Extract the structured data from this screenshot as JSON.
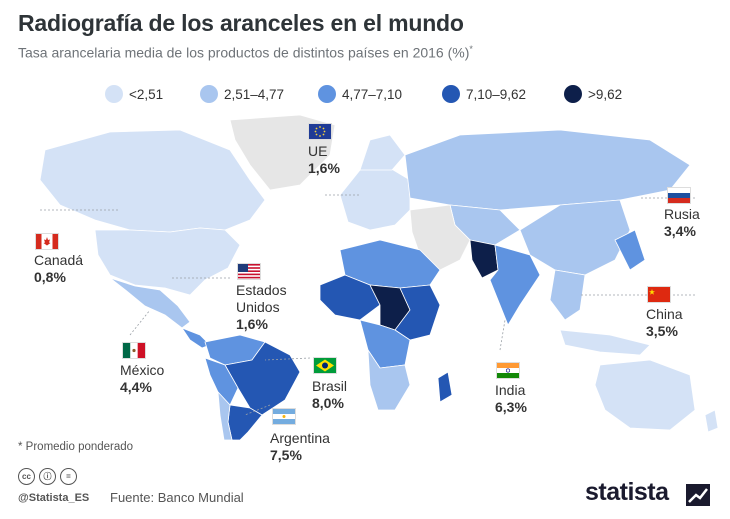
{
  "title": "Radiografía de los aranceles en el mundo",
  "subtitle": "Tasa arancelaria media de los productos de distintos países en 2016 (%)",
  "subtitle_mark": "*",
  "legend": [
    {
      "label": "<2,51",
      "color": "#d4e2f6"
    },
    {
      "label": "2,51–4,77",
      "color": "#a9c6ef"
    },
    {
      "label": "4,77–7,10",
      "color": "#5f93e0"
    },
    {
      "label": "7,10–9,62",
      "color": "#2457b3"
    },
    {
      "label": ">9,62",
      "color": "#0d1f4a"
    }
  ],
  "colors": {
    "no_data": "#e6e6e6",
    "ocean": "#ffffff",
    "leader": "#9aa0a6"
  },
  "callouts": {
    "eu": {
      "name": "UE",
      "value": "1,6%",
      "flag": "eu-flag-icon"
    },
    "russia": {
      "name": "Rusia",
      "value": "3,4%",
      "flag": "russia-flag-icon"
    },
    "canada": {
      "name": "Canadá",
      "value": "0,8%",
      "flag": "canada-flag-icon"
    },
    "usa": {
      "name": "Estados\nUnidos",
      "name_line1": "Estados",
      "name_line2": "Unidos",
      "value": "1,6%",
      "flag": "usa-flag-icon"
    },
    "china": {
      "name": "China",
      "value": "3,5%",
      "flag": "china-flag-icon"
    },
    "mexico": {
      "name": "México",
      "value": "4,4%",
      "flag": "mexico-flag-icon"
    },
    "brazil": {
      "name": "Brasil",
      "value": "8,0%",
      "flag": "brazil-flag-icon"
    },
    "india": {
      "name": "India",
      "value": "6,3%",
      "flag": "india-flag-icon"
    },
    "argentina": {
      "name": "Argentina",
      "value": "7,5%",
      "flag": "argentina-flag-icon"
    }
  },
  "footnote": "* Promedio ponderado",
  "license_icons": [
    "cc",
    "ⓘ",
    "="
  ],
  "handle": "@Statista_ES",
  "source": "Fuente: Banco Mundial",
  "brand": "statista"
}
